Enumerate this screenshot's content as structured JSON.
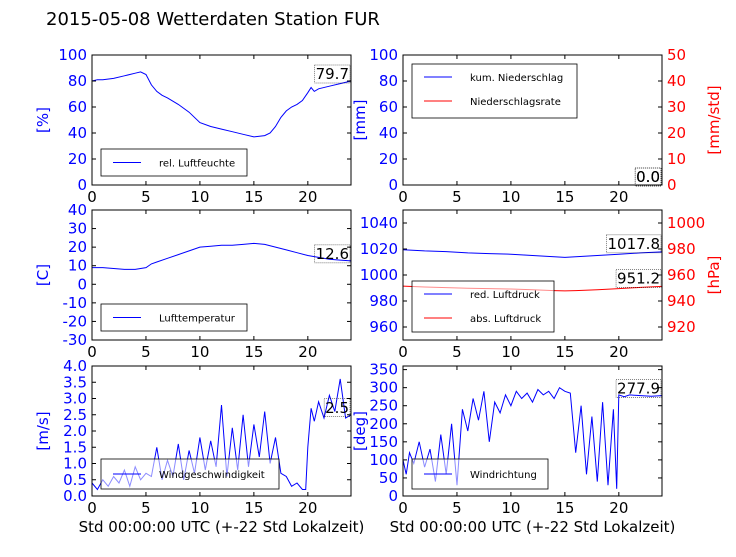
{
  "title": "2015-05-08 Wetterdaten Station FUR",
  "colors": {
    "left_axis": "#0000ff",
    "right_axis": "#ff0000",
    "line_primary": "#0000ff",
    "line_secondary": "#ff0000",
    "grid": "none"
  },
  "chart_data": [
    {
      "type": "line",
      "ylabel": "[%]",
      "ylim": [
        0,
        100
      ],
      "yticks": [
        0,
        20,
        40,
        60,
        80,
        100
      ],
      "xlim": [
        0,
        24
      ],
      "xticks": [
        0,
        5,
        10,
        15,
        20
      ],
      "legend_position": "lower-left",
      "last_value": "79.7",
      "series": [
        {
          "name": "rel. Luftfeuchte",
          "color": "#0000ff",
          "x": [
            0,
            0.5,
            1,
            2,
            3,
            4,
            4.5,
            5,
            5.5,
            6,
            6.5,
            7,
            8,
            9,
            10,
            11,
            12,
            13,
            14,
            15,
            16,
            16.5,
            17,
            17.5,
            18,
            18.5,
            19,
            19.5,
            20,
            20.3,
            20.6,
            21,
            22,
            23,
            24
          ],
          "y": [
            80,
            81,
            81,
            82,
            84,
            86,
            87,
            85,
            77,
            72,
            69,
            67,
            62,
            56,
            48,
            45,
            43,
            41,
            39,
            37,
            38,
            40,
            45,
            52,
            57,
            60,
            62,
            65,
            71,
            75,
            72,
            74,
            76,
            78,
            80
          ]
        }
      ]
    },
    {
      "type": "line",
      "ylabel": "[mm]",
      "ylim": [
        0,
        100
      ],
      "yticks": [
        0,
        20,
        40,
        60,
        80,
        100
      ],
      "ylabel_right": "[mm/std]",
      "ylim_right": [
        0,
        50
      ],
      "yticks_right": [
        0,
        10,
        20,
        30,
        40,
        50
      ],
      "xlim": [
        0,
        24
      ],
      "xticks": [
        0,
        5,
        10,
        15,
        20
      ],
      "legend_position": "upper-left",
      "last_value_primary": "0.0",
      "last_value_secondary": "0.0",
      "series": [
        {
          "name": "kum. Niederschlag",
          "color": "#0000ff",
          "axis": "left",
          "x": [
            0,
            24
          ],
          "y": [
            0,
            0
          ]
        },
        {
          "name": "Niederschlagsrate",
          "color": "#ff0000",
          "axis": "right",
          "x": [
            0,
            24
          ],
          "y": [
            0,
            0
          ]
        }
      ]
    },
    {
      "type": "line",
      "ylabel": "[C]",
      "ylim": [
        -30,
        40
      ],
      "yticks": [
        -30,
        -20,
        -10,
        0,
        10,
        20,
        30,
        40
      ],
      "xlim": [
        0,
        24
      ],
      "xticks": [
        0,
        5,
        10,
        15,
        20
      ],
      "legend_position": "lower-left",
      "last_value": "12.6",
      "series": [
        {
          "name": "Lufttemperatur",
          "color": "#0000ff",
          "x": [
            0,
            1,
            2,
            3,
            4,
            5,
            5.5,
            6,
            7,
            8,
            9,
            10,
            11,
            12,
            13,
            14,
            15,
            16,
            17,
            18,
            19,
            20,
            21,
            22,
            23,
            24
          ],
          "y": [
            9,
            9,
            8.5,
            8,
            8,
            9,
            11,
            12,
            14,
            16,
            18,
            20,
            20.5,
            21,
            21,
            21.5,
            22,
            21.5,
            20,
            18.5,
            17,
            15.5,
            14.5,
            13.5,
            13,
            12.6
          ]
        }
      ]
    },
    {
      "type": "line",
      "ylabel_right": "[hPa]",
      "ylim": [
        950,
        1050
      ],
      "yticks": [
        960,
        980,
        1000,
        1020,
        1040
      ],
      "ylim_right": [
        910,
        1010
      ],
      "yticks_right": [
        920,
        940,
        960,
        980,
        1000
      ],
      "xlim": [
        0,
        24
      ],
      "xticks": [
        0,
        5,
        10,
        15,
        20
      ],
      "legend_position": "lower-left",
      "last_value_primary": "1017.8",
      "last_value_secondary": "951.2",
      "series": [
        {
          "name": "red. Luftdruck",
          "color": "#0000ff",
          "axis": "left",
          "x": [
            0,
            2,
            4,
            6,
            8,
            10,
            12,
            14,
            15,
            16,
            18,
            20,
            22,
            24
          ],
          "y": [
            1019.5,
            1018.5,
            1018,
            1017,
            1016.5,
            1016,
            1015,
            1014,
            1013.5,
            1014,
            1015,
            1016,
            1017,
            1017.8
          ]
        },
        {
          "name": "abs. Luftdruck",
          "color": "#ff0000",
          "axis": "right",
          "x": [
            0,
            2,
            4,
            6,
            8,
            10,
            12,
            14,
            15,
            16,
            18,
            20,
            22,
            24
          ],
          "y": [
            951.5,
            950.8,
            950.3,
            949.8,
            949.5,
            949.2,
            948.6,
            948,
            947.8,
            948,
            948.6,
            949.5,
            950.5,
            951.2
          ]
        }
      ]
    },
    {
      "type": "line",
      "ylabel": "[m/s]",
      "ylim": [
        0,
        4
      ],
      "yticks": [
        0.0,
        0.5,
        1.0,
        1.5,
        2.0,
        2.5,
        3.0,
        3.5,
        4.0
      ],
      "ytick_labels": [
        "0.0",
        "0.5",
        "1.0",
        "1.5",
        "2.0",
        "2.5",
        "3.0",
        "3.5",
        "4.0"
      ],
      "xlim": [
        0,
        24
      ],
      "xticks": [
        0,
        5,
        10,
        15,
        20
      ],
      "xlabel": "Std 00:00:00 UTC (+-22 Std Lokalzeit)",
      "legend_position": "lower-left",
      "last_value": "2.5",
      "series": [
        {
          "name": "Windgeschwindigkeit",
          "color": "#0000ff",
          "x": [
            0,
            0.5,
            1,
            1.5,
            2,
            2.5,
            3,
            3.5,
            4,
            4.5,
            5,
            5.5,
            6,
            6.5,
            7,
            7.5,
            8,
            8.5,
            9,
            9.5,
            10,
            10.5,
            11,
            11.5,
            12,
            12.5,
            13,
            13.5,
            14,
            14.5,
            15,
            15.5,
            16,
            16.5,
            17,
            17.5,
            18,
            18.5,
            19,
            19.5,
            19.8,
            20,
            20.3,
            20.6,
            21,
            21.5,
            22,
            22.5,
            23,
            23.5,
            24
          ],
          "y": [
            0.4,
            0.2,
            0.5,
            0.3,
            0.6,
            0.4,
            0.8,
            0.3,
            0.9,
            0.5,
            0.7,
            0.6,
            1.5,
            0.5,
            1.1,
            0.6,
            1.6,
            0.5,
            1.4,
            0.7,
            1.8,
            0.8,
            1.7,
            0.9,
            2.8,
            0.6,
            2.1,
            0.8,
            2.5,
            0.9,
            2.2,
            1.2,
            2.6,
            1.0,
            1.8,
            0.7,
            0.6,
            0.3,
            0.4,
            0.2,
            0.2,
            1.5,
            2.7,
            2.3,
            2.9,
            2.4,
            3.1,
            2.6,
            3.6,
            2.4,
            2.5
          ]
        }
      ]
    },
    {
      "type": "line",
      "ylabel": "[deg]",
      "ylim": [
        0,
        360
      ],
      "yticks": [
        0,
        50,
        100,
        150,
        200,
        250,
        300,
        350
      ],
      "xlim": [
        0,
        24
      ],
      "xticks": [
        0,
        5,
        10,
        15,
        20
      ],
      "xlabel": "Std 00:00:00 UTC (+-22 Std Lokalzeit)",
      "legend_position": "lower-left",
      "last_value": "277.9",
      "series": [
        {
          "name": "Windrichtung",
          "color": "#0000ff",
          "x": [
            0,
            0.3,
            0.6,
            1,
            1.5,
            2,
            2.5,
            3,
            3.5,
            4,
            4.5,
            5,
            5.5,
            6,
            6.5,
            7,
            7.5,
            8,
            8.5,
            9,
            9.5,
            10,
            10.5,
            11,
            11.5,
            12,
            12.5,
            13,
            13.5,
            14,
            14.5,
            15,
            15.5,
            16,
            16.5,
            17,
            17.5,
            18,
            18.5,
            19,
            19.5,
            19.8,
            20,
            20.5,
            21,
            22,
            23,
            24
          ],
          "y": [
            100,
            60,
            120,
            90,
            150,
            80,
            130,
            40,
            170,
            60,
            200,
            30,
            240,
            180,
            270,
            210,
            290,
            150,
            260,
            230,
            280,
            250,
            290,
            270,
            285,
            260,
            295,
            280,
            290,
            270,
            300,
            290,
            285,
            120,
            250,
            60,
            220,
            40,
            260,
            30,
            240,
            20,
            280,
            275,
            280,
            278,
            276,
            278
          ]
        }
      ]
    }
  ]
}
